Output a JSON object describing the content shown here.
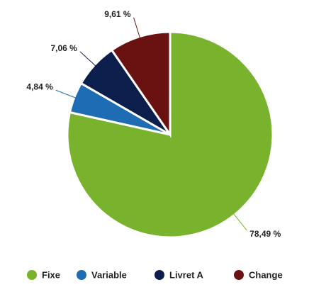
{
  "chart_data": {
    "type": "pie",
    "categories": [
      "Fixe",
      "Variable",
      "Livret A",
      "Change"
    ],
    "values": [
      78.49,
      4.84,
      7.06,
      9.61
    ],
    "value_labels": [
      "78,49 %",
      "4,84 %",
      "7,06 %",
      "9,61 %"
    ],
    "colors": [
      "#79b22d",
      "#1e6db4",
      "#0c1e4b",
      "#6a1111"
    ],
    "legend": "bottom"
  }
}
